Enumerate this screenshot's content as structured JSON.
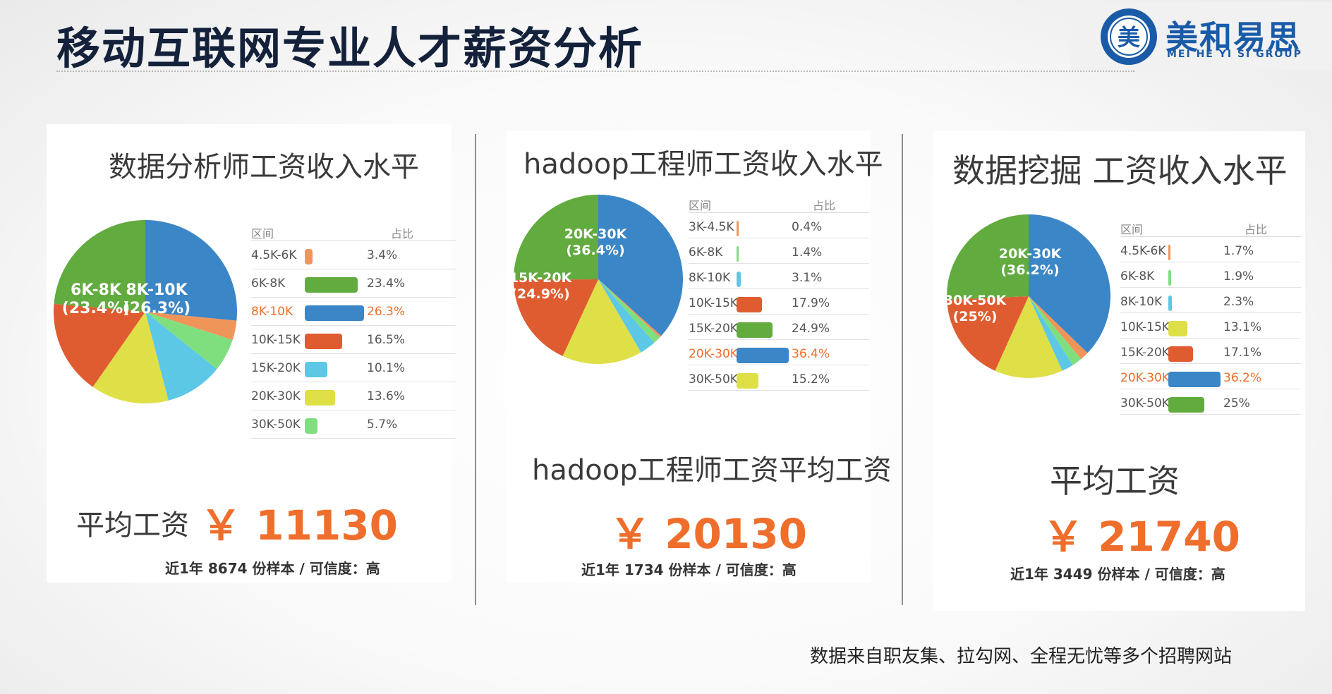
{
  "page": {
    "title": "移动互联网专业人才薪资分析",
    "logo_cn": "美和易思",
    "logo_en": "MEI HE YI SI GROUP",
    "logo_badge": "美",
    "source_note": "数据来自职友集、拉勾网、全程无忧等多个招聘网站"
  },
  "chart_data": [
    {
      "type": "pie",
      "title": "数据分析师工资收入水平",
      "legend_headers": [
        "区间",
        "占比"
      ],
      "categories": [
        "4.5K-6K",
        "6K-8K",
        "8K-10K",
        "10K-15K",
        "15K-20K",
        "20K-30K",
        "30K-50K"
      ],
      "values": [
        3.4,
        23.4,
        26.3,
        16.5,
        10.1,
        13.6,
        5.7
      ],
      "value_labels": [
        "3.4%",
        "23.4%",
        "26.3%",
        "16.5%",
        "10.1%",
        "13.6%",
        "5.7%"
      ],
      "colors": [
        "#f0955a",
        "#62ab3f",
        "#3a86c6",
        "#df5c30",
        "#5cc8e6",
        "#dfdf48",
        "#7fdf7f"
      ],
      "highlight": "8K-10K",
      "pie_order": [
        "8K-10K",
        "4.5K-6K",
        "30K-50K",
        "15K-20K",
        "20K-30K",
        "10K-15K",
        "6K-8K"
      ],
      "pie_labels": [
        {
          "category": "6K-8K",
          "lines": [
            "6K-8K",
            "(23.4%)"
          ]
        },
        {
          "category": "8K-10K",
          "lines": [
            "8K-10K",
            "(26.3%)"
          ]
        }
      ],
      "avg_label": "平均工资",
      "avg_value": "￥ 11130",
      "sample_note": "近1年 8674 份样本 / 可信度：高"
    },
    {
      "type": "pie",
      "title": "hadoop工程师工资收入水平",
      "legend_headers": [
        "区间",
        "占比"
      ],
      "categories": [
        "3K-4.5K",
        "6K-8K",
        "8K-10K",
        "10K-15K",
        "15K-20K",
        "20K-30K",
        "30K-50K"
      ],
      "values": [
        0.4,
        1.4,
        3.1,
        17.9,
        24.9,
        36.4,
        15.2
      ],
      "value_labels": [
        "0.4%",
        "1.4%",
        "3.1%",
        "17.9%",
        "24.9%",
        "36.4%",
        "15.2%"
      ],
      "colors": [
        "#f0955a",
        "#7fdf7f",
        "#5cc8e6",
        "#df5c30",
        "#62ab3f",
        "#3a86c6",
        "#dfdf48"
      ],
      "highlight": "20K-30K",
      "pie_order": [
        "20K-30K",
        "3K-4.5K",
        "6K-8K",
        "8K-10K",
        "30K-50K",
        "10K-15K",
        "15K-20K"
      ],
      "pie_labels": [
        {
          "category": "20K-30K",
          "lines": [
            "20K-30K",
            "(36.4%)"
          ]
        },
        {
          "category": "15K-20K",
          "lines": [
            "15K-20K",
            "(24.9%)"
          ]
        }
      ],
      "avg_label": "hadoop工程师工资平均工资",
      "avg_value": "￥ 20130",
      "sample_note": "近1年 1734 份样本 / 可信度：高"
    },
    {
      "type": "pie",
      "title": "数据挖掘 工资收入水平",
      "legend_headers": [
        "区间",
        "占比"
      ],
      "categories": [
        "4.5K-6K",
        "6K-8K",
        "8K-10K",
        "10K-15K",
        "15K-20K",
        "20K-30K",
        "30K-50K"
      ],
      "values": [
        1.7,
        1.9,
        2.3,
        13.1,
        17.1,
        36.2,
        25
      ],
      "value_labels": [
        "1.7%",
        "1.9%",
        "2.3%",
        "13.1%",
        "17.1%",
        "36.2%",
        "25%"
      ],
      "colors": [
        "#f0955a",
        "#7fdf7f",
        "#5cc8e6",
        "#dfdf48",
        "#df5c30",
        "#3a86c6",
        "#62ab3f"
      ],
      "highlight": "20K-30K",
      "pie_order": [
        "20K-30K",
        "4.5K-6K",
        "6K-8K",
        "8K-10K",
        "10K-15K",
        "15K-20K",
        "30K-50K"
      ],
      "pie_labels": [
        {
          "category": "20K-30K",
          "lines": [
            "20K-30K",
            "(36.2%)"
          ]
        },
        {
          "category": "30K-50K",
          "lines": [
            "30K-50K",
            "(25%)"
          ]
        }
      ],
      "avg_label": "平均工资",
      "avg_value": "￥ 21740",
      "sample_note": "近1年 3449 份样本 / 可信度：高"
    }
  ]
}
